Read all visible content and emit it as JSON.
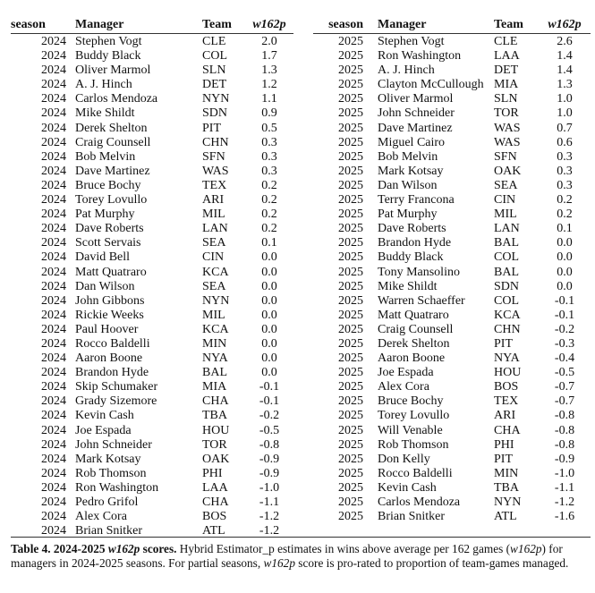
{
  "headers": {
    "season": "season",
    "manager": "Manager",
    "team": "Team",
    "score": "w162p"
  },
  "table_2024": [
    [
      "2024",
      "Stephen Vogt",
      "CLE",
      "2.0"
    ],
    [
      "2024",
      "Buddy Black",
      "COL",
      "1.7"
    ],
    [
      "2024",
      "Oliver Marmol",
      "SLN",
      "1.3"
    ],
    [
      "2024",
      "A. J. Hinch",
      "DET",
      "1.2"
    ],
    [
      "2024",
      "Carlos Mendoza",
      "NYN",
      "1.1"
    ],
    [
      "2024",
      "Mike Shildt",
      "SDN",
      "0.9"
    ],
    [
      "2024",
      "Derek Shelton",
      "PIT",
      "0.5"
    ],
    [
      "2024",
      "Craig Counsell",
      "CHN",
      "0.3"
    ],
    [
      "2024",
      "Bob Melvin",
      "SFN",
      "0.3"
    ],
    [
      "2024",
      "Dave Martinez",
      "WAS",
      "0.3"
    ],
    [
      "2024",
      "Bruce Bochy",
      "TEX",
      "0.2"
    ],
    [
      "2024",
      "Torey Lovullo",
      "ARI",
      "0.2"
    ],
    [
      "2024",
      "Pat Murphy",
      "MIL",
      "0.2"
    ],
    [
      "2024",
      "Dave Roberts",
      "LAN",
      "0.2"
    ],
    [
      "2024",
      "Scott Servais",
      "SEA",
      "0.1"
    ],
    [
      "2024",
      "David Bell",
      "CIN",
      "0.0"
    ],
    [
      "2024",
      "Matt Quatraro",
      "KCA",
      "0.0"
    ],
    [
      "2024",
      "Dan Wilson",
      "SEA",
      "0.0"
    ],
    [
      "2024",
      "John Gibbons",
      "NYN",
      "0.0"
    ],
    [
      "2024",
      "Rickie Weeks",
      "MIL",
      "0.0"
    ],
    [
      "2024",
      "Paul Hoover",
      "KCA",
      "0.0"
    ],
    [
      "2024",
      "Rocco Baldelli",
      "MIN",
      "0.0"
    ],
    [
      "2024",
      "Aaron Boone",
      "NYA",
      "0.0"
    ],
    [
      "2024",
      "Brandon Hyde",
      "BAL",
      "0.0"
    ],
    [
      "2024",
      "Skip Schumaker",
      "MIA",
      "-0.1"
    ],
    [
      "2024",
      "Grady Sizemore",
      "CHA",
      "-0.1"
    ],
    [
      "2024",
      "Kevin Cash",
      "TBA",
      "-0.2"
    ],
    [
      "2024",
      "Joe Espada",
      "HOU",
      "-0.5"
    ],
    [
      "2024",
      "John Schneider",
      "TOR",
      "-0.8"
    ],
    [
      "2024",
      "Mark Kotsay",
      "OAK",
      "-0.9"
    ],
    [
      "2024",
      "Rob Thomson",
      "PHI",
      "-0.9"
    ],
    [
      "2024",
      "Ron Washington",
      "LAA",
      "-1.0"
    ],
    [
      "2024",
      "Pedro Grifol",
      "CHA",
      "-1.1"
    ],
    [
      "2024",
      "Alex Cora",
      "BOS",
      "-1.2"
    ],
    [
      "2024",
      "Brian Snitker",
      "ATL",
      "-1.2"
    ]
  ],
  "table_2025": [
    [
      "2025",
      "Stephen Vogt",
      "CLE",
      "2.6"
    ],
    [
      "2025",
      "Ron Washington",
      "LAA",
      "1.4"
    ],
    [
      "2025",
      "A. J. Hinch",
      "DET",
      "1.4"
    ],
    [
      "2025",
      "Clayton McCullough",
      "MIA",
      "1.3"
    ],
    [
      "2025",
      "Oliver Marmol",
      "SLN",
      "1.0"
    ],
    [
      "2025",
      "John Schneider",
      "TOR",
      "1.0"
    ],
    [
      "2025",
      "Dave Martinez",
      "WAS",
      "0.7"
    ],
    [
      "2025",
      "Miguel Cairo",
      "WAS",
      "0.6"
    ],
    [
      "2025",
      "Bob Melvin",
      "SFN",
      "0.3"
    ],
    [
      "2025",
      "Mark Kotsay",
      "OAK",
      "0.3"
    ],
    [
      "2025",
      "Dan Wilson",
      "SEA",
      "0.3"
    ],
    [
      "2025",
      "Terry Francona",
      "CIN",
      "0.2"
    ],
    [
      "2025",
      "Pat Murphy",
      "MIL",
      "0.2"
    ],
    [
      "2025",
      "Dave Roberts",
      "LAN",
      "0.1"
    ],
    [
      "2025",
      "Brandon Hyde",
      "BAL",
      "0.0"
    ],
    [
      "2025",
      "Buddy Black",
      "COL",
      "0.0"
    ],
    [
      "2025",
      "Tony Mansolino",
      "BAL",
      "0.0"
    ],
    [
      "2025",
      "Mike Shildt",
      "SDN",
      "0.0"
    ],
    [
      "2025",
      "Warren Schaeffer",
      "COL",
      "-0.1"
    ],
    [
      "2025",
      "Matt Quatraro",
      "KCA",
      "-0.1"
    ],
    [
      "2025",
      "Craig Counsell",
      "CHN",
      "-0.2"
    ],
    [
      "2025",
      "Derek Shelton",
      "PIT",
      "-0.3"
    ],
    [
      "2025",
      "Aaron Boone",
      "NYA",
      "-0.4"
    ],
    [
      "2025",
      "Joe Espada",
      "HOU",
      "-0.5"
    ],
    [
      "2025",
      "Alex Cora",
      "BOS",
      "-0.7"
    ],
    [
      "2025",
      "Bruce Bochy",
      "TEX",
      "-0.7"
    ],
    [
      "2025",
      "Torey Lovullo",
      "ARI",
      "-0.8"
    ],
    [
      "2025",
      "Will Venable",
      "CHA",
      "-0.8"
    ],
    [
      "2025",
      "Rob Thomson",
      "PHI",
      "-0.8"
    ],
    [
      "2025",
      "Don Kelly",
      "PIT",
      "-0.9"
    ],
    [
      "2025",
      "Rocco Baldelli",
      "MIN",
      "-1.0"
    ],
    [
      "2025",
      "Kevin Cash",
      "TBA",
      "-1.1"
    ],
    [
      "2025",
      "Carlos Mendoza",
      "NYN",
      "-1.2"
    ],
    [
      "2025",
      "Brian Snitker",
      "ATL",
      "-1.6"
    ]
  ],
  "caption": {
    "label": "Table 4. 2024-2025 ",
    "label_italic": "w162p",
    "label_end": " scores.",
    "text1": " Hybrid Estimator_p estimates in wins above average per 162 games (",
    "italic1": "w162p",
    "text2": ") for managers in 2024-2025 seasons. For partial seasons, ",
    "italic2": "w162p",
    "text3": " score is pro-rated to proportion of team-games managed."
  }
}
